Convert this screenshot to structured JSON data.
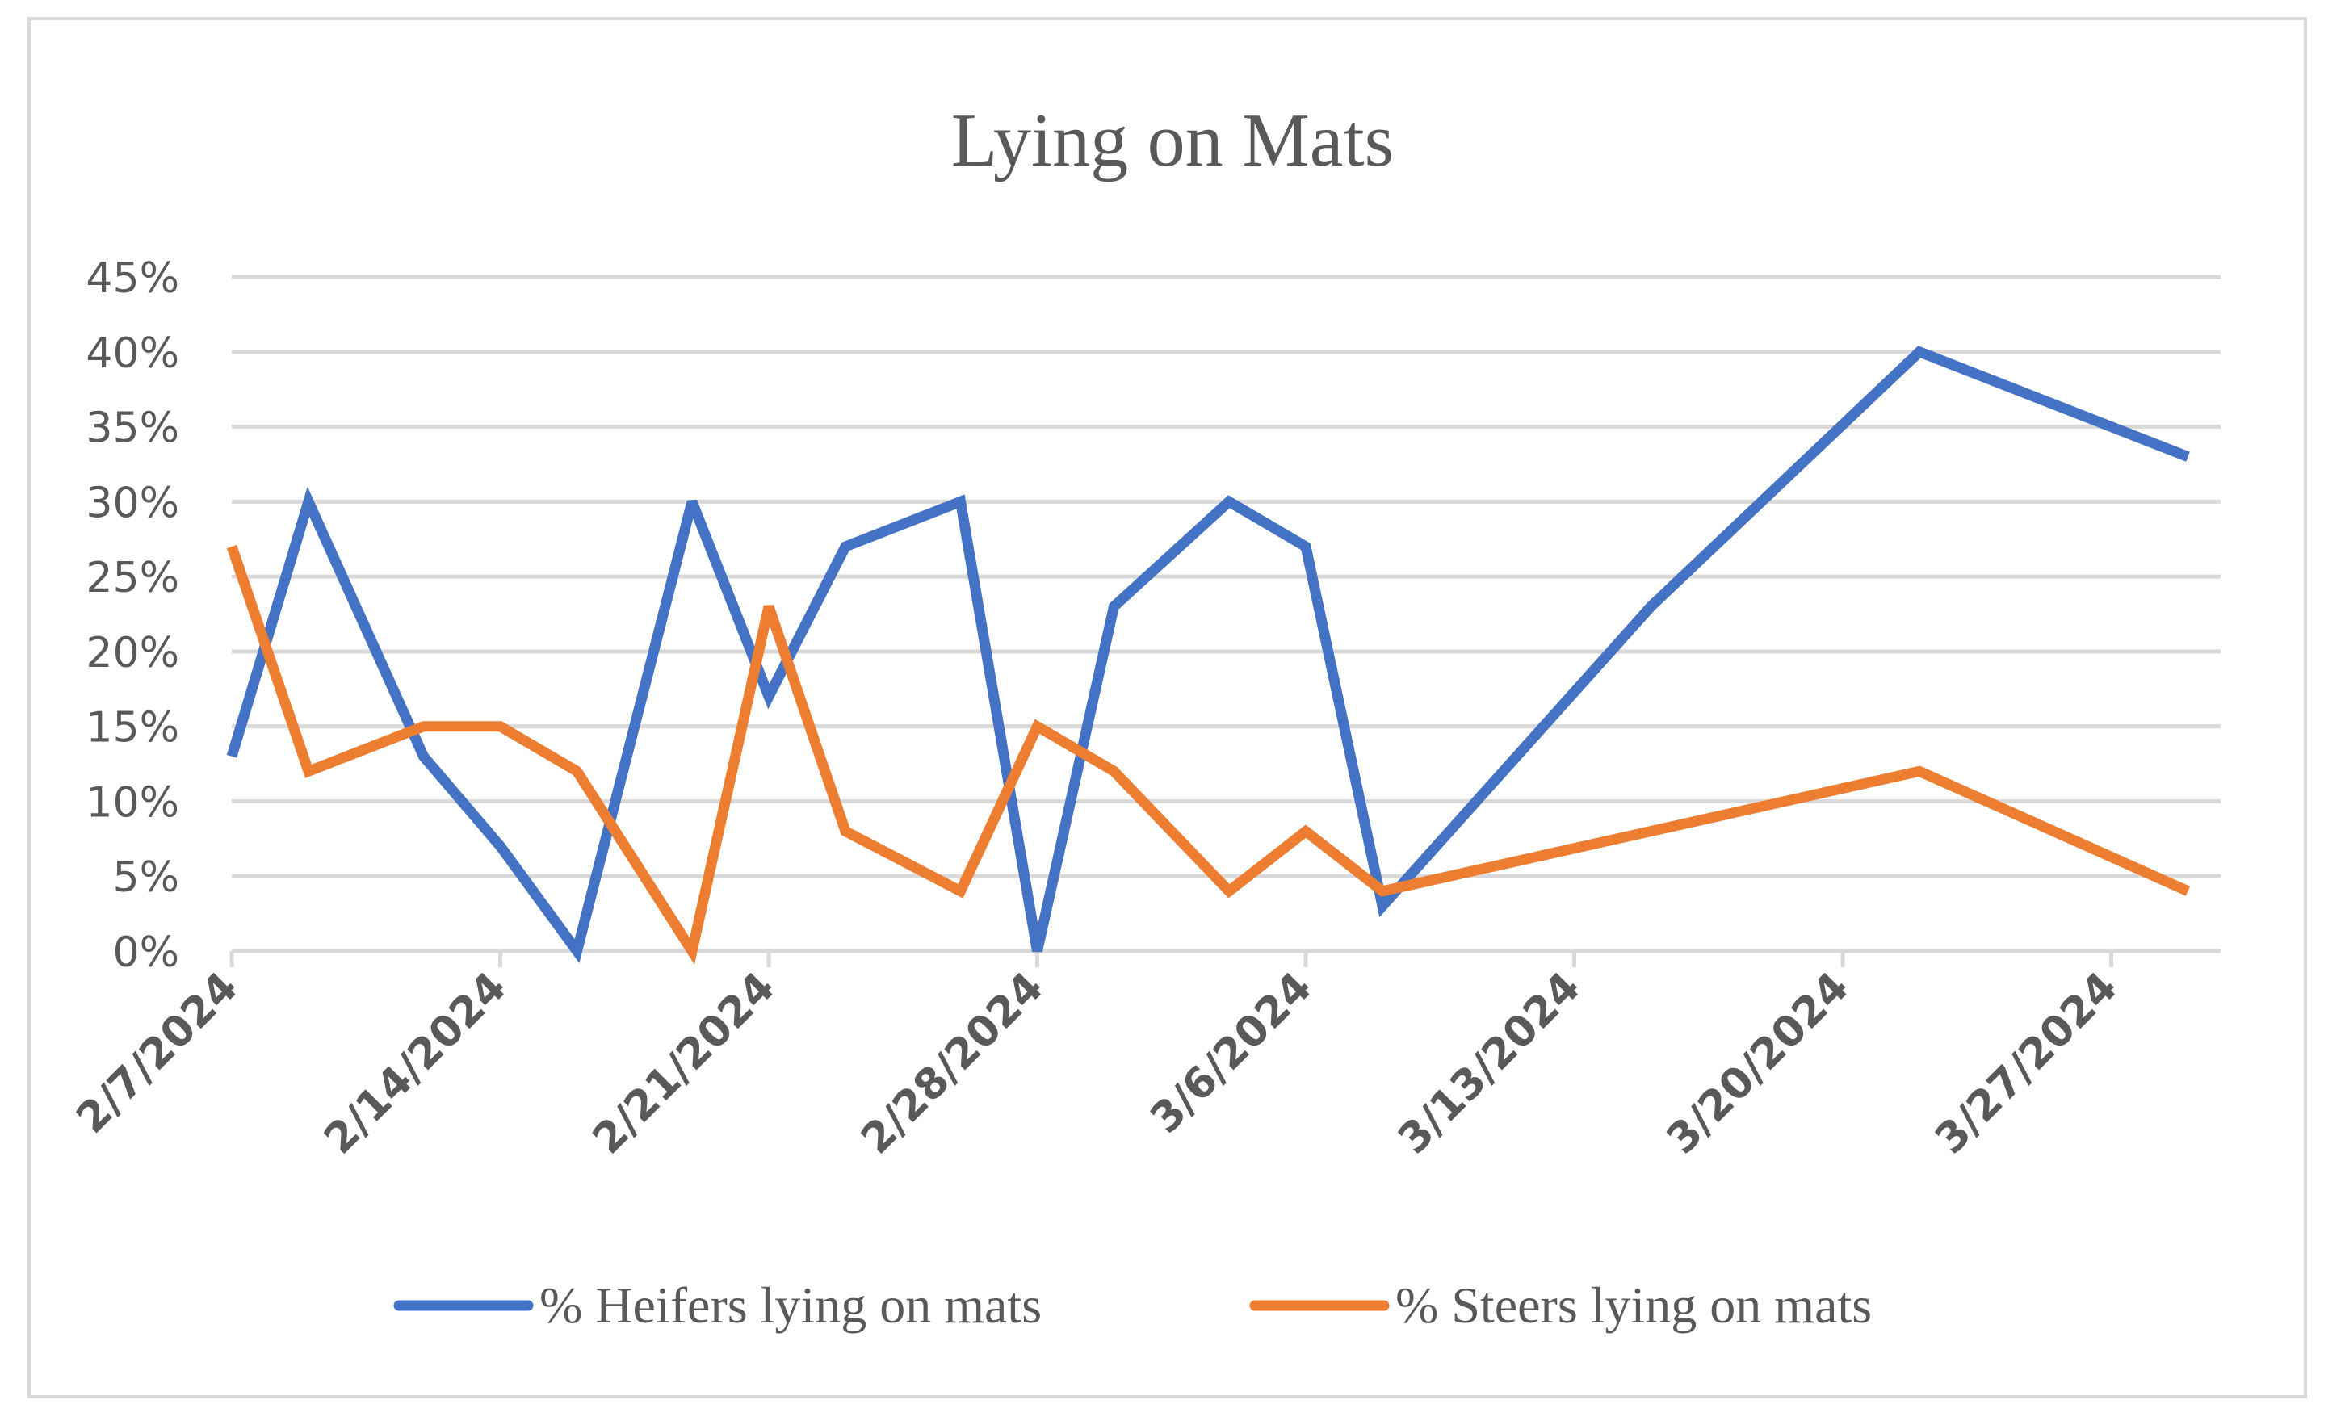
{
  "chart_data": {
    "type": "line",
    "title": "Lying on Mats",
    "xlabel": "",
    "ylabel": "",
    "ylim": [
      0,
      0.45
    ],
    "y_tick_labels": [
      "0%",
      "5%",
      "10%",
      "15%",
      "20%",
      "25%",
      "30%",
      "35%",
      "40%",
      "45%"
    ],
    "y_ticks": [
      0,
      0.05,
      0.1,
      0.15,
      0.2,
      0.25,
      0.3,
      0.35,
      0.4,
      0.45
    ],
    "x_range": [
      "2024-02-07",
      "2024-03-31"
    ],
    "x_tick_dates": [
      "2024-02-07",
      "2024-02-14",
      "2024-02-21",
      "2024-02-28",
      "2024-03-06",
      "2024-03-13",
      "2024-03-20",
      "2024-03-27"
    ],
    "x_tick_labels": [
      "2/7/2024",
      "2/14/2024",
      "2/21/2024",
      "2/28/2024",
      "3/6/2024",
      "3/13/2024",
      "3/20/2024",
      "3/27/2024"
    ],
    "grid": true,
    "legend_position": "bottom",
    "series": [
      {
        "name": "% Heifers lying on mats",
        "color": "#4472c4",
        "x": [
          "2024-02-07",
          "2024-02-09",
          "2024-02-12",
          "2024-02-14",
          "2024-02-16",
          "2024-02-19",
          "2024-02-21",
          "2024-02-23",
          "2024-02-26",
          "2024-02-28",
          "2024-03-01",
          "2024-03-04",
          "2024-03-06",
          "2024-03-08",
          "2024-03-15",
          "2024-03-22",
          "2024-03-29"
        ],
        "values": [
          0.13,
          0.3,
          0.13,
          0.07,
          0.0,
          0.3,
          0.17,
          0.27,
          0.3,
          0.0,
          0.23,
          0.3,
          0.27,
          0.03,
          0.23,
          0.4,
          0.33
        ]
      },
      {
        "name": "% Steers lying on mats",
        "color": "#ed7d31",
        "x": [
          "2024-02-07",
          "2024-02-09",
          "2024-02-12",
          "2024-02-14",
          "2024-02-16",
          "2024-02-19",
          "2024-02-21",
          "2024-02-23",
          "2024-02-26",
          "2024-02-28",
          "2024-03-01",
          "2024-03-04",
          "2024-03-06",
          "2024-03-08",
          "2024-03-22",
          "2024-03-29"
        ],
        "values": [
          0.27,
          0.12,
          0.15,
          0.15,
          0.12,
          0.0,
          0.23,
          0.08,
          0.04,
          0.15,
          0.12,
          0.04,
          0.08,
          0.04,
          0.12,
          0.04
        ]
      }
    ]
  },
  "colors": {
    "gridline": "#d9d9d9",
    "axis": "#d9d9d9",
    "text": "#595959",
    "border": "#d9d9d9"
  }
}
